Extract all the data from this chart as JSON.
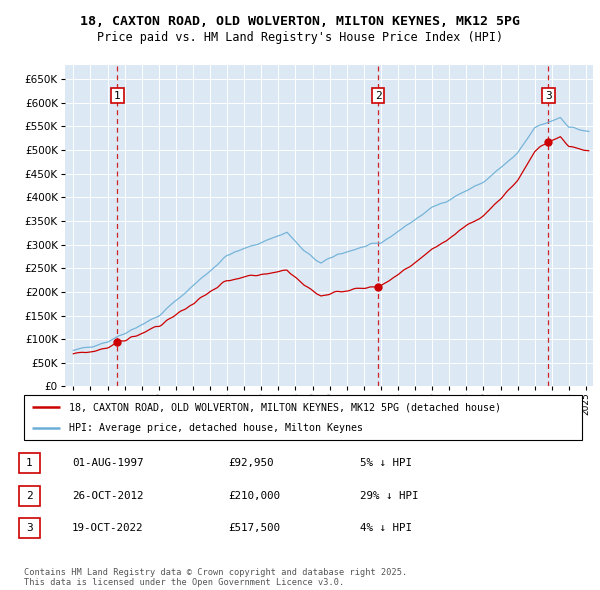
{
  "title_line1": "18, CAXTON ROAD, OLD WOLVERTON, MILTON KEYNES, MK12 5PG",
  "title_line2": "Price paid vs. HM Land Registry's House Price Index (HPI)",
  "bg_color": "#dce9f5",
  "grid_color": "#ffffff",
  "sale_prices": [
    92950,
    210000,
    517500
  ],
  "sale_labels": [
    "1",
    "2",
    "3"
  ],
  "legend_line1": "18, CAXTON ROAD, OLD WOLVERTON, MILTON KEYNES, MK12 5PG (detached house)",
  "legend_line2": "HPI: Average price, detached house, Milton Keynes",
  "table_data": [
    [
      "1",
      "01-AUG-1997",
      "£92,950",
      "5% ↓ HPI"
    ],
    [
      "2",
      "26-OCT-2012",
      "£210,000",
      "29% ↓ HPI"
    ],
    [
      "3",
      "19-OCT-2022",
      "£517,500",
      "4% ↓ HPI"
    ]
  ],
  "footer": "Contains HM Land Registry data © Crown copyright and database right 2025.\nThis data is licensed under the Open Government Licence v3.0.",
  "ylim": [
    0,
    680000
  ],
  "yticks": [
    0,
    50000,
    100000,
    150000,
    200000,
    250000,
    300000,
    350000,
    400000,
    450000,
    500000,
    550000,
    600000,
    650000
  ],
  "hpi_color": "#6baed6",
  "price_color": "#cc0000",
  "vline_color": "#cc0000",
  "sale_year_floats": [
    1997.583,
    2012.833,
    2022.8
  ]
}
